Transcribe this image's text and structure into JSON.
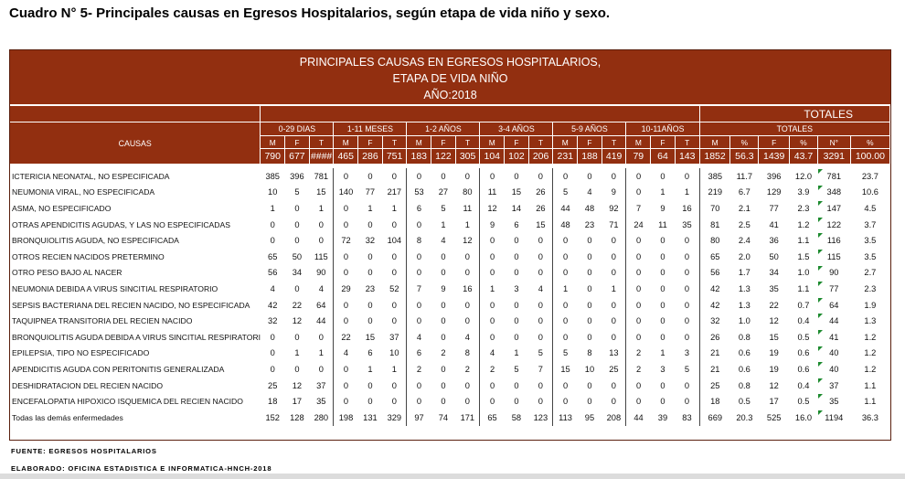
{
  "doc_title": "Cuadro N° 5- Principales causas en Egresos Hospitalarios, según etapa de vida niño y sexo.",
  "banner": {
    "line1": "PRINCIPALES CAUSAS EN EGRESOS HOSPITALARIOS,",
    "line2": "ETAPA DE VIDA NIÑO",
    "line3": "AÑO:2018"
  },
  "header": {
    "causas": "CAUSAS",
    "totales_big": "TOTALES",
    "totales_small": "TOTALES",
    "groups": [
      "0-29 DIAS",
      "1-11 MESES",
      "1-2 AÑOS",
      "3-4 AÑOS",
      "5-9 AÑOS",
      "10-11AÑOS"
    ],
    "sub_labels": [
      "M",
      "F",
      "T",
      "M",
      "F",
      "T",
      "M",
      "F",
      "T",
      "M",
      "F",
      "T",
      "M",
      "F",
      "T",
      "M",
      "F",
      "T",
      "M",
      "%",
      "F",
      "%",
      "N°",
      "%"
    ],
    "sum_values": [
      "790",
      "677",
      "####",
      "465",
      "286",
      "751",
      "183",
      "122",
      "305",
      "104",
      "102",
      "206",
      "231",
      "188",
      "419",
      "79",
      "64",
      "143",
      "1852",
      "56.3",
      "1439",
      "43.7",
      "3291",
      "100.00"
    ]
  },
  "rows": [
    {
      "cause": "ICTERICIA NEONATAL, NO ESPECIFICADA",
      "v": [
        "385",
        "396",
        "781",
        "0",
        "0",
        "0",
        "0",
        "0",
        "0",
        "0",
        "0",
        "0",
        "0",
        "0",
        "0",
        "0",
        "0",
        "0",
        "385",
        "11.7",
        "396",
        "12.0",
        "781",
        "23.7"
      ]
    },
    {
      "cause": "NEUMONIA VIRAL, NO ESPECIFICADA",
      "v": [
        "10",
        "5",
        "15",
        "140",
        "77",
        "217",
        "53",
        "27",
        "80",
        "11",
        "15",
        "26",
        "5",
        "4",
        "9",
        "0",
        "1",
        "1",
        "219",
        "6.7",
        "129",
        "3.9",
        "348",
        "10.6"
      ]
    },
    {
      "cause": "ASMA, NO ESPECIFICADO",
      "v": [
        "1",
        "0",
        "1",
        "0",
        "1",
        "1",
        "6",
        "5",
        "11",
        "12",
        "14",
        "26",
        "44",
        "48",
        "92",
        "7",
        "9",
        "16",
        "70",
        "2.1",
        "77",
        "2.3",
        "147",
        "4.5"
      ]
    },
    {
      "cause": "OTRAS APENDICITIS AGUDAS, Y LAS NO ESPECIFICADAS",
      "v": [
        "0",
        "0",
        "0",
        "0",
        "0",
        "0",
        "0",
        "1",
        "1",
        "9",
        "6",
        "15",
        "48",
        "23",
        "71",
        "24",
        "11",
        "35",
        "81",
        "2.5",
        "41",
        "1.2",
        "122",
        "3.7"
      ]
    },
    {
      "cause": "BRONQUIOLITIS AGUDA, NO ESPECIFICADA",
      "v": [
        "0",
        "0",
        "0",
        "72",
        "32",
        "104",
        "8",
        "4",
        "12",
        "0",
        "0",
        "0",
        "0",
        "0",
        "0",
        "0",
        "0",
        "0",
        "80",
        "2.4",
        "36",
        "1.1",
        "116",
        "3.5"
      ]
    },
    {
      "cause": "OTROS RECIEN NACIDOS PRETERMINO",
      "v": [
        "65",
        "50",
        "115",
        "0",
        "0",
        "0",
        "0",
        "0",
        "0",
        "0",
        "0",
        "0",
        "0",
        "0",
        "0",
        "0",
        "0",
        "0",
        "65",
        "2.0",
        "50",
        "1.5",
        "115",
        "3.5"
      ]
    },
    {
      "cause": "OTRO PESO BAJO AL NACER",
      "v": [
        "56",
        "34",
        "90",
        "0",
        "0",
        "0",
        "0",
        "0",
        "0",
        "0",
        "0",
        "0",
        "0",
        "0",
        "0",
        "0",
        "0",
        "0",
        "56",
        "1.7",
        "34",
        "1.0",
        "90",
        "2.7"
      ]
    },
    {
      "cause": "NEUMONIA DEBIDA A VIRUS SINCITIAL RESPIRATORIO",
      "v": [
        "4",
        "0",
        "4",
        "29",
        "23",
        "52",
        "7",
        "9",
        "16",
        "1",
        "3",
        "4",
        "1",
        "0",
        "1",
        "0",
        "0",
        "0",
        "42",
        "1.3",
        "35",
        "1.1",
        "77",
        "2.3"
      ]
    },
    {
      "cause": "SEPSIS BACTERIANA DEL RECIEN NACIDO, NO ESPECIFICADA",
      "v": [
        "42",
        "22",
        "64",
        "0",
        "0",
        "0",
        "0",
        "0",
        "0",
        "0",
        "0",
        "0",
        "0",
        "0",
        "0",
        "0",
        "0",
        "0",
        "42",
        "1.3",
        "22",
        "0.7",
        "64",
        "1.9"
      ]
    },
    {
      "cause": "TAQUIPNEA TRANSITORIA DEL RECIEN NACIDO",
      "v": [
        "32",
        "12",
        "44",
        "0",
        "0",
        "0",
        "0",
        "0",
        "0",
        "0",
        "0",
        "0",
        "0",
        "0",
        "0",
        "0",
        "0",
        "0",
        "32",
        "1.0",
        "12",
        "0.4",
        "44",
        "1.3"
      ]
    },
    {
      "cause": "BRONQUIOLITIS AGUDA DEBIDA A VIRUS SINCITIAL RESPIRATORIC",
      "v": [
        "0",
        "0",
        "0",
        "22",
        "15",
        "37",
        "4",
        "0",
        "4",
        "0",
        "0",
        "0",
        "0",
        "0",
        "0",
        "0",
        "0",
        "0",
        "26",
        "0.8",
        "15",
        "0.5",
        "41",
        "1.2"
      ]
    },
    {
      "cause": "EPILEPSIA, TIPO NO ESPECIFICADO",
      "v": [
        "0",
        "1",
        "1",
        "4",
        "6",
        "10",
        "6",
        "2",
        "8",
        "4",
        "1",
        "5",
        "5",
        "8",
        "13",
        "2",
        "1",
        "3",
        "21",
        "0.6",
        "19",
        "0.6",
        "40",
        "1.2"
      ]
    },
    {
      "cause": "APENDICITIS AGUDA CON PERITONITIS GENERALIZADA",
      "v": [
        "0",
        "0",
        "0",
        "0",
        "1",
        "1",
        "2",
        "0",
        "2",
        "2",
        "5",
        "7",
        "15",
        "10",
        "25",
        "2",
        "3",
        "5",
        "21",
        "0.6",
        "19",
        "0.6",
        "40",
        "1.2"
      ]
    },
    {
      "cause": "DESHIDRATACION DEL RECIEN NACIDO",
      "v": [
        "25",
        "12",
        "37",
        "0",
        "0",
        "0",
        "0",
        "0",
        "0",
        "0",
        "0",
        "0",
        "0",
        "0",
        "0",
        "0",
        "0",
        "0",
        "25",
        "0.8",
        "12",
        "0.4",
        "37",
        "1.1"
      ]
    },
    {
      "cause": "ENCEFALOPATIA HIPOXICO ISQUEMICA DEL RECIEN NACIDO",
      "v": [
        "18",
        "17",
        "35",
        "0",
        "0",
        "0",
        "0",
        "0",
        "0",
        "0",
        "0",
        "0",
        "0",
        "0",
        "0",
        "0",
        "0",
        "0",
        "18",
        "0.5",
        "17",
        "0.5",
        "35",
        "1.1"
      ]
    },
    {
      "cause": "Todas las demás enfermedades",
      "v": [
        "152",
        "128",
        "280",
        "198",
        "131",
        "329",
        "97",
        "74",
        "171",
        "65",
        "58",
        "123",
        "113",
        "95",
        "208",
        "44",
        "39",
        "83",
        "669",
        "20.3",
        "525",
        "16.0",
        "1194",
        "36.3"
      ]
    }
  ],
  "footer": {
    "fuente": "FUENTE: EGRESOS HOSPITALARIOS",
    "elaborado": "ELABORADO: OFICINA ESTADISTICA E INFORMATICA-HNCH-2018"
  },
  "colors": {
    "header_bg": "#922f10",
    "header_text": "#ffffff",
    "note_marker": "#1c8a2e"
  }
}
